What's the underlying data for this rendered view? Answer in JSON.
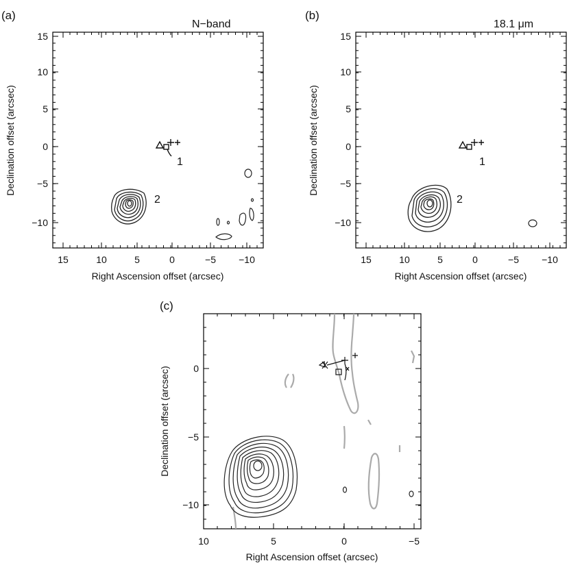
{
  "figure": {
    "panels": [
      {
        "id": "a",
        "panel_label": "(a)",
        "band_label": "N−band",
        "xlabel": "Right Ascension offset (arcsec)",
        "ylabel": "Declination offset (arcsec)",
        "xticks": [
          "15",
          "10",
          "5",
          "0",
          "−5",
          "−10"
        ],
        "yticks": [
          "15",
          "10",
          "5",
          "0",
          "−5",
          "−10"
        ],
        "source_labels": [
          "1",
          "2"
        ]
      },
      {
        "id": "b",
        "panel_label": "(b)",
        "band_label": "18.1 μm",
        "xlabel": "Right Ascension offset (arcsec)",
        "ylabel": "Declination offset (arcsec)",
        "xticks": [
          "15",
          "10",
          "5",
          "0",
          "−5",
          "−10"
        ],
        "yticks": [
          "15",
          "10",
          "5",
          "0",
          "−5",
          "−10"
        ],
        "source_labels": [
          "1",
          "2"
        ]
      },
      {
        "id": "c",
        "panel_label": "(c)",
        "xlabel": "Right Ascension offset (arcsec)",
        "ylabel": "Declination offset (arcsec)",
        "xticks": [
          "10",
          "5",
          "0",
          "−5"
        ],
        "yticks": [
          "0",
          "−5",
          "−10"
        ]
      }
    ],
    "colors": {
      "contour": "#222222",
      "negative_contour": "#aaaaaa",
      "axes": "#000000"
    }
  }
}
